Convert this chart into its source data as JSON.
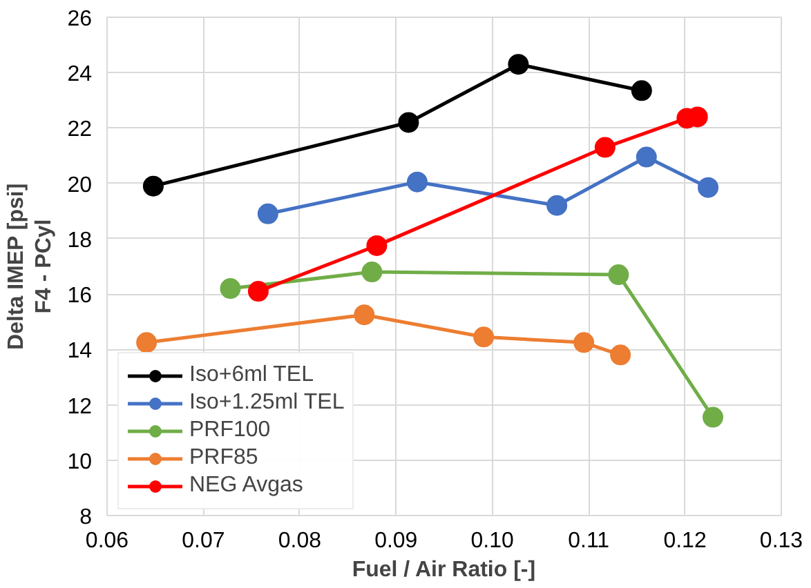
{
  "chart_data": {
    "type": "line",
    "xlabel": "Fuel / Air Ratio [-]",
    "ylabel": "Delta IMEP [psi]\nF4 - PCyl",
    "xlim": [
      0.06,
      0.13
    ],
    "xticks": [
      {
        "value": 0.06,
        "label": "0.06"
      },
      {
        "value": 0.07,
        "label": "0.07"
      },
      {
        "value": 0.08,
        "label": "0.08"
      },
      {
        "value": 0.09,
        "label": "0.09"
      },
      {
        "value": 0.1,
        "label": "0.10"
      },
      {
        "value": 0.11,
        "label": "0.11"
      },
      {
        "value": 0.12,
        "label": "0.12"
      },
      {
        "value": 0.13,
        "label": "0.13"
      }
    ],
    "ylim": [
      8,
      26
    ],
    "yticks": [
      8,
      10,
      12,
      14,
      16,
      18,
      20,
      22,
      24,
      26
    ],
    "grid": true,
    "legend": "bottom left",
    "marker": "circle",
    "line_style": "solid",
    "series": [
      {
        "name": "Iso+6ml TEL",
        "color": "#000000",
        "x": [
          0.0648,
          0.0913,
          0.1027,
          0.1155
        ],
        "values": [
          19.9,
          22.2,
          24.3,
          23.35
        ]
      },
      {
        "name": "Iso+1.25ml TEL",
        "color": "#4472c4",
        "x": [
          0.0767,
          0.0922,
          0.1067,
          0.116,
          0.1224
        ],
        "values": [
          18.9,
          20.05,
          19.2,
          20.95,
          19.85
        ]
      },
      {
        "name": "PRF100",
        "color": "#70ad47",
        "x": [
          0.0728,
          0.0875,
          0.1131,
          0.1229
        ],
        "values": [
          16.2,
          16.8,
          16.7,
          11.55
        ]
      },
      {
        "name": "PRF85",
        "color": "#ed7d31",
        "x": [
          0.0641,
          0.0867,
          0.0991,
          0.1095,
          0.1133
        ],
        "values": [
          14.25,
          15.25,
          14.45,
          14.25,
          13.8
        ]
      },
      {
        "name": "NEG Avgas",
        "color": "#ff0000",
        "x": [
          0.0757,
          0.088,
          0.1117,
          0.1202,
          0.1213
        ],
        "values": [
          16.1,
          17.75,
          21.3,
          22.35,
          22.4
        ]
      }
    ]
  }
}
